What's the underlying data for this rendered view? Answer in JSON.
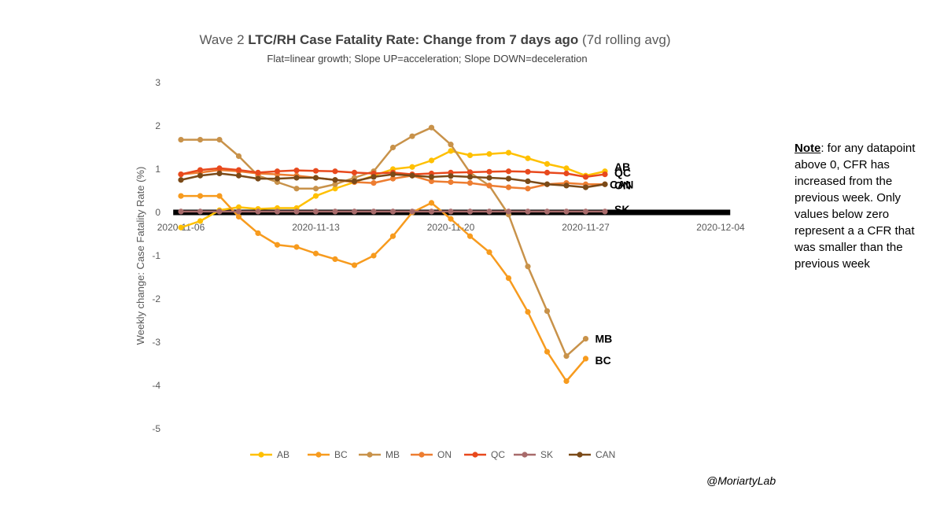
{
  "chart_data": {
    "type": "line",
    "title_prefix": "Wave 2 ",
    "title_bold": "LTC/RH Case Fatality Rate: Change from 7 days ago",
    "title_suffix": " (7d rolling avg)",
    "subtitle": "Flat=linear growth; Slope UP=acceleration; Slope DOWN=deceleration",
    "ylabel": "Weekly change: Case Fatality Rate (%)",
    "xlabel": "",
    "ylim": [
      -5,
      3
    ],
    "yticks": [
      "-5",
      "-4",
      "-3",
      "-2",
      "-1",
      "0",
      "1",
      "2",
      "3"
    ],
    "x_range_days": [
      0,
      28
    ],
    "x_ticks": [
      {
        "day": 0,
        "label": "2020-11-06"
      },
      {
        "day": 7,
        "label": "2020-11-13"
      },
      {
        "day": 14,
        "label": "2020-11-20"
      },
      {
        "day": 21,
        "label": "2020-11-27"
      },
      {
        "day": 28,
        "label": "2020-12-04"
      }
    ],
    "grid": false,
    "legend_position": "bottom",
    "series": [
      {
        "name": "AB",
        "color": "#FFC000",
        "values": [
          -0.35,
          -0.2,
          0.05,
          0.12,
          0.08,
          0.1,
          0.1,
          0.38,
          0.55,
          0.7,
          0.85,
          1.0,
          1.05,
          1.2,
          1.42,
          1.32,
          1.35,
          1.38,
          1.25,
          1.12,
          1.02,
          0.85,
          0.95
        ]
      },
      {
        "name": "BC",
        "color": "#F79B1E",
        "values": [
          0.38,
          0.38,
          0.38,
          -0.1,
          -0.48,
          -0.75,
          -0.8,
          -0.95,
          -1.08,
          -1.22,
          -1.0,
          -0.55,
          0.0,
          0.22,
          -0.15,
          -0.55,
          -0.92,
          -1.52,
          -2.3,
          -3.22,
          -3.9,
          -3.38
        ]
      },
      {
        "name": "MB",
        "color": "#C8924A",
        "values": [
          1.68,
          1.68,
          1.68,
          1.3,
          0.85,
          0.7,
          0.55,
          0.55,
          0.65,
          0.8,
          0.95,
          1.5,
          1.76,
          1.96,
          1.57,
          0.92,
          0.62,
          -0.05,
          -1.25,
          -2.28,
          -3.32,
          -2.92
        ]
      },
      {
        "name": "ON",
        "color": "#ED7D31",
        "values": [
          0.88,
          0.92,
          0.98,
          0.95,
          0.9,
          0.88,
          0.85,
          0.8,
          0.75,
          0.7,
          0.68,
          0.78,
          0.85,
          0.72,
          0.7,
          0.68,
          0.62,
          0.58,
          0.55,
          0.65,
          0.68,
          0.65,
          0.65
        ]
      },
      {
        "name": "QC",
        "color": "#E8491D",
        "values": [
          0.88,
          0.98,
          1.02,
          0.98,
          0.92,
          0.95,
          0.97,
          0.96,
          0.95,
          0.92,
          0.9,
          0.92,
          0.88,
          0.9,
          0.92,
          0.93,
          0.94,
          0.95,
          0.94,
          0.92,
          0.9,
          0.82,
          0.88
        ]
      },
      {
        "name": "SK",
        "color": "#A86B6B",
        "values": [
          0.02,
          0.02,
          0.02,
          0.02,
          0.02,
          0.02,
          0.02,
          0.02,
          0.02,
          0.02,
          0.02,
          0.02,
          0.02,
          0.02,
          0.02,
          0.02,
          0.02,
          0.02,
          0.02,
          0.02,
          0.02,
          0.02,
          0.02
        ]
      },
      {
        "name": "CAN",
        "color": "#7A4A18",
        "values": [
          0.75,
          0.85,
          0.9,
          0.85,
          0.78,
          0.78,
          0.8,
          0.8,
          0.75,
          0.72,
          0.82,
          0.88,
          0.85,
          0.82,
          0.84,
          0.82,
          0.8,
          0.78,
          0.72,
          0.65,
          0.62,
          0.58,
          0.65
        ]
      }
    ],
    "end_labels": [
      "AB",
      "QC",
      "CAN",
      "ON",
      "SK",
      "MB",
      "BC"
    ]
  },
  "note": {
    "heading": "Note",
    "body": ": for any datapoint above 0, CFR has increased from the previous week. Only values below zero represent a a CFR that was smaller than the previous week"
  },
  "credit": "@MoriartyLab"
}
